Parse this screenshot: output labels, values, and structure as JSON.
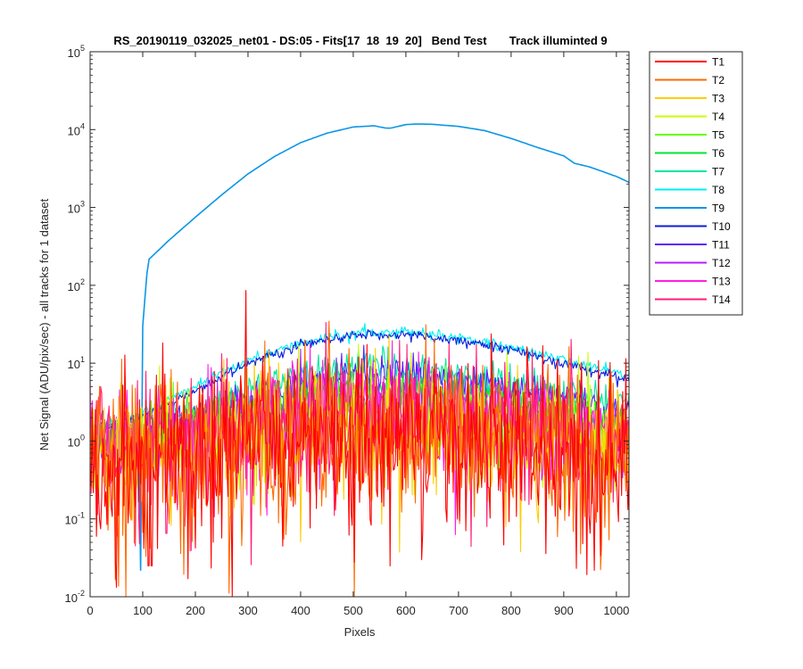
{
  "chart_data": {
    "type": "line",
    "title": "RS_20190119_032025_net01 - DS:05 - Fits[17  18  19  20]   Bend Test       Track illuminted 9",
    "xlabel": "Pixels",
    "ylabel": "Net Signal (ADU/pix/sec) - all tracks for 1 dataset",
    "xlim": [
      0,
      1024
    ],
    "ylim": [
      0.01,
      100000
    ],
    "yscale": "log",
    "grid": false,
    "legend_position": "outside-right-top",
    "x_ticks": [
      0,
      100,
      200,
      300,
      400,
      500,
      600,
      700,
      800,
      900,
      1000
    ],
    "x_tick_labels": [
      "0",
      "100",
      "200",
      "300",
      "400",
      "500",
      "600",
      "700",
      "800",
      "900",
      "1000"
    ],
    "y_ticks": [
      0.01,
      0.1,
      1,
      10,
      100,
      1000,
      10000,
      100000
    ],
    "y_tick_labels": [
      {
        "base": "10",
        "exp": "-2"
      },
      {
        "base": "10",
        "exp": "-1"
      },
      {
        "base": "10",
        "exp": "0"
      },
      {
        "base": "10",
        "exp": "1"
      },
      {
        "base": "10",
        "exp": "2"
      },
      {
        "base": "10",
        "exp": "3"
      },
      {
        "base": "10",
        "exp": "4"
      },
      {
        "base": "10",
        "exp": "5"
      }
    ],
    "series": [
      {
        "name": "T1",
        "color": "#ff0000",
        "x": [
          0,
          100,
          200,
          300,
          400,
          500,
          600,
          700,
          800,
          900,
          1024
        ],
        "values": [
          0.55,
          0.6,
          0.75,
          0.95,
          1.15,
          1.3,
          1.3,
          1.15,
          0.95,
          0.75,
          0.6
        ],
        "noise": 0.55
      },
      {
        "name": "T2",
        "color": "#ff6a00",
        "x": [
          0,
          100,
          200,
          300,
          400,
          500,
          600,
          700,
          800,
          900,
          1024
        ],
        "values": [
          0.6,
          0.65,
          0.8,
          1.0,
          1.25,
          1.4,
          1.4,
          1.25,
          1.0,
          0.8,
          0.65
        ],
        "noise": 0.5
      },
      {
        "name": "T3",
        "color": "#ffcc00",
        "x": [
          0,
          100,
          200,
          300,
          400,
          500,
          600,
          700,
          800,
          900,
          1024
        ],
        "values": [
          0.7,
          0.75,
          0.95,
          1.2,
          1.5,
          1.7,
          1.7,
          1.5,
          1.2,
          0.95,
          0.75
        ],
        "noise": 0.42
      },
      {
        "name": "T4",
        "color": "#c8ff00",
        "x": [
          0,
          100,
          200,
          300,
          400,
          500,
          600,
          700,
          800,
          900,
          1024
        ],
        "values": [
          0.8,
          0.9,
          1.15,
          1.5,
          1.9,
          2.2,
          2.2,
          1.9,
          1.5,
          1.15,
          0.9
        ],
        "noise": 0.35
      },
      {
        "name": "T5",
        "color": "#66ff00",
        "x": [
          0,
          100,
          200,
          300,
          400,
          500,
          600,
          700,
          800,
          900,
          1024
        ],
        "values": [
          0.9,
          1.05,
          1.4,
          1.9,
          2.5,
          3.0,
          3.0,
          2.6,
          2.1,
          1.6,
          1.2
        ],
        "noise": 0.2
      },
      {
        "name": "T6",
        "color": "#00e632",
        "x": [
          0,
          100,
          200,
          300,
          400,
          500,
          600,
          700,
          800,
          900,
          1024
        ],
        "values": [
          1.0,
          1.2,
          1.8,
          2.8,
          4.0,
          5.0,
          5.0,
          4.3,
          3.3,
          2.5,
          1.8
        ],
        "noise": 0.12
      },
      {
        "name": "T7",
        "color": "#00e6a0",
        "x": [
          0,
          100,
          200,
          300,
          400,
          500,
          600,
          700,
          800,
          900,
          1024
        ],
        "values": [
          1.2,
          1.5,
          2.5,
          4.5,
          7.0,
          9.2,
          9.0,
          7.5,
          5.5,
          4.0,
          3.0
        ],
        "noise": 0.1
      },
      {
        "name": "T8",
        "color": "#00f0f0",
        "x": [
          0,
          100,
          200,
          300,
          400,
          500,
          600,
          700,
          800,
          900,
          1024
        ],
        "values": [
          1.5,
          2.3,
          5.0,
          11.0,
          18.0,
          24.5,
          26.0,
          22.0,
          16.0,
          11.0,
          7.0
        ],
        "noise": 0.03
      },
      {
        "name": "T9",
        "color": "#0a96e6",
        "x": [
          0,
          90,
          95,
          100,
          110,
          150,
          200,
          250,
          300,
          350,
          400,
          450,
          500,
          540,
          560,
          570,
          600,
          620,
          650,
          700,
          750,
          800,
          850,
          900,
          920,
          950,
          1000,
          1024
        ],
        "values": [
          1.5,
          1.8,
          3.0,
          30,
          210,
          380,
          750,
          1450,
          2700,
          4500,
          6800,
          9000,
          10800,
          11200,
          10500,
          10400,
          11600,
          11800,
          11700,
          11000,
          9700,
          7700,
          5900,
          4600,
          3700,
          3300,
          2500,
          2100
        ],
        "noise": 0.0
      },
      {
        "name": "T10",
        "color": "#0a1edc",
        "x": [
          0,
          100,
          200,
          300,
          400,
          500,
          600,
          700,
          800,
          900,
          1024
        ],
        "values": [
          1.3,
          2.0,
          4.5,
          10.0,
          17.0,
          22.5,
          23.5,
          20.0,
          15.0,
          10.0,
          6.0
        ],
        "noise": 0.03
      },
      {
        "name": "T11",
        "color": "#5a1eff",
        "x": [
          0,
          100,
          200,
          300,
          400,
          500,
          600,
          700,
          800,
          900,
          1024
        ],
        "values": [
          1.1,
          1.35,
          2.2,
          3.8,
          6.0,
          7.8,
          7.6,
          6.3,
          4.7,
          3.4,
          2.4
        ],
        "noise": 0.1
      },
      {
        "name": "T12",
        "color": "#b41eff",
        "x": [
          0,
          100,
          200,
          300,
          400,
          500,
          600,
          700,
          800,
          900,
          1024
        ],
        "values": [
          0.95,
          1.1,
          1.55,
          2.3,
          3.1,
          3.7,
          3.6,
          3.0,
          2.3,
          1.7,
          1.3
        ],
        "noise": 0.18
      },
      {
        "name": "T13",
        "color": "#ff1ee6",
        "x": [
          0,
          100,
          200,
          300,
          400,
          500,
          600,
          700,
          800,
          900,
          1024
        ],
        "values": [
          0.8,
          0.9,
          1.2,
          1.65,
          2.1,
          2.5,
          2.5,
          2.1,
          1.7,
          1.3,
          1.0
        ],
        "noise": 0.32
      },
      {
        "name": "T14",
        "color": "#ff1e78",
        "x": [
          0,
          100,
          200,
          300,
          400,
          500,
          600,
          700,
          800,
          900,
          1024
        ],
        "values": [
          0.7,
          0.75,
          1.0,
          1.3,
          1.65,
          1.9,
          1.9,
          1.65,
          1.3,
          1.0,
          0.8
        ],
        "noise": 0.42
      }
    ],
    "min_dips": [
      {
        "series": "T9",
        "x": 96,
        "y": 0.022
      },
      {
        "series": "T1",
        "x": 111,
        "y": 0.025
      },
      {
        "series": "T1",
        "x": 117,
        "y": 0.025
      },
      {
        "series": "T1",
        "x": 630,
        "y": 0.03
      },
      {
        "series": "T14",
        "x": 86,
        "y": 0.045
      },
      {
        "series": "T14",
        "x": 52,
        "y": 0.06
      },
      {
        "series": "T14",
        "x": 145,
        "y": 0.065
      }
    ]
  }
}
